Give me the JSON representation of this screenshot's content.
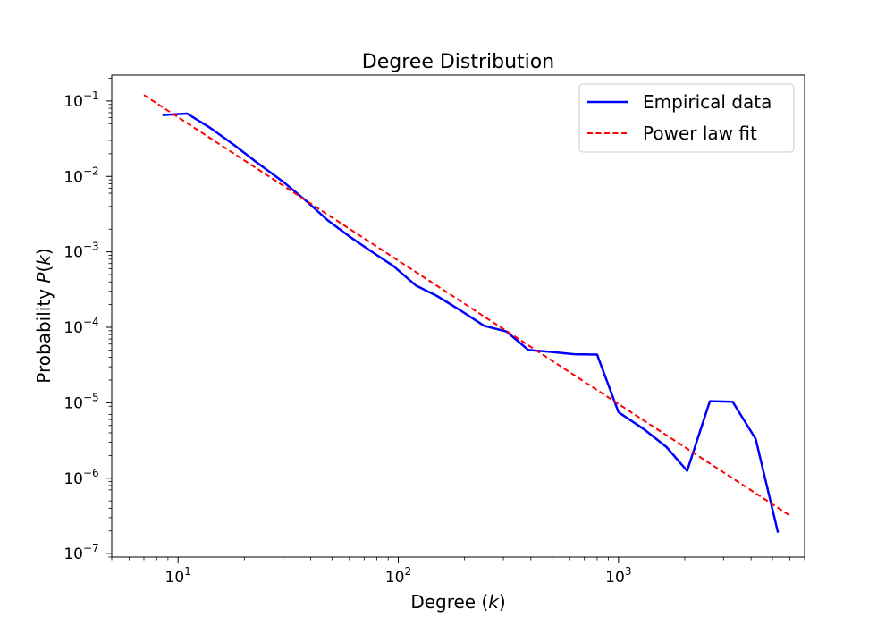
{
  "chart_data": {
    "type": "line",
    "title": "Degree Distribution",
    "xlabel_prefix": "Degree (",
    "xlabel_var": "k",
    "xlabel_suffix": ")",
    "ylabel_prefix": "Probability ",
    "ylabel_var_p": "P",
    "ylabel_open": "(",
    "ylabel_var_k": "k",
    "ylabel_close": ")",
    "x_scale": "log",
    "y_scale": "log",
    "xlim": [
      5,
      7000
    ],
    "ylim": [
      9e-08,
      0.22
    ],
    "grid": false,
    "legend_position": "top-right",
    "x_ticks": [
      {
        "value": 10,
        "base": "10",
        "exp": "1"
      },
      {
        "value": 100,
        "base": "10",
        "exp": "2"
      },
      {
        "value": 1000,
        "base": "10",
        "exp": "3"
      }
    ],
    "y_ticks": [
      {
        "value": 1e-07,
        "base": "10",
        "exp": "−7"
      },
      {
        "value": 1e-06,
        "base": "10",
        "exp": "−6"
      },
      {
        "value": 1e-05,
        "base": "10",
        "exp": "−5"
      },
      {
        "value": 0.0001,
        "base": "10",
        "exp": "−4"
      },
      {
        "value": 0.001,
        "base": "10",
        "exp": "−3"
      },
      {
        "value": 0.01,
        "base": "10",
        "exp": "−2"
      },
      {
        "value": 0.1,
        "base": "10",
        "exp": "−1"
      }
    ],
    "series": [
      {
        "name": "Empirical data",
        "color": "#0000ff",
        "style": "solid",
        "x": [
          8.5,
          11,
          14,
          18,
          23,
          30,
          38,
          48,
          60,
          76,
          95,
          120,
          150,
          190,
          245,
          310,
          390,
          500,
          630,
          800,
          1000,
          1300,
          1650,
          2050,
          2600,
          3300,
          4200,
          5300
        ],
        "y": [
          0.065,
          0.068,
          0.044,
          0.026,
          0.015,
          0.0085,
          0.0048,
          0.0026,
          0.0016,
          0.001,
          0.00065,
          0.00036,
          0.00026,
          0.00017,
          0.000105,
          8.8e-05,
          5e-05,
          4.7e-05,
          4.4e-05,
          4.35e-05,
          7.5e-06,
          4.5e-06,
          2.6e-06,
          1.25e-06,
          1.05e-05,
          1.03e-05,
          3.3e-06,
          1.9e-07
        ]
      },
      {
        "name": "Power law fit",
        "color": "#ff0000",
        "style": "dashed",
        "x": [
          7,
          6000
        ],
        "y": [
          0.12,
          3.2e-07
        ]
      }
    ]
  }
}
